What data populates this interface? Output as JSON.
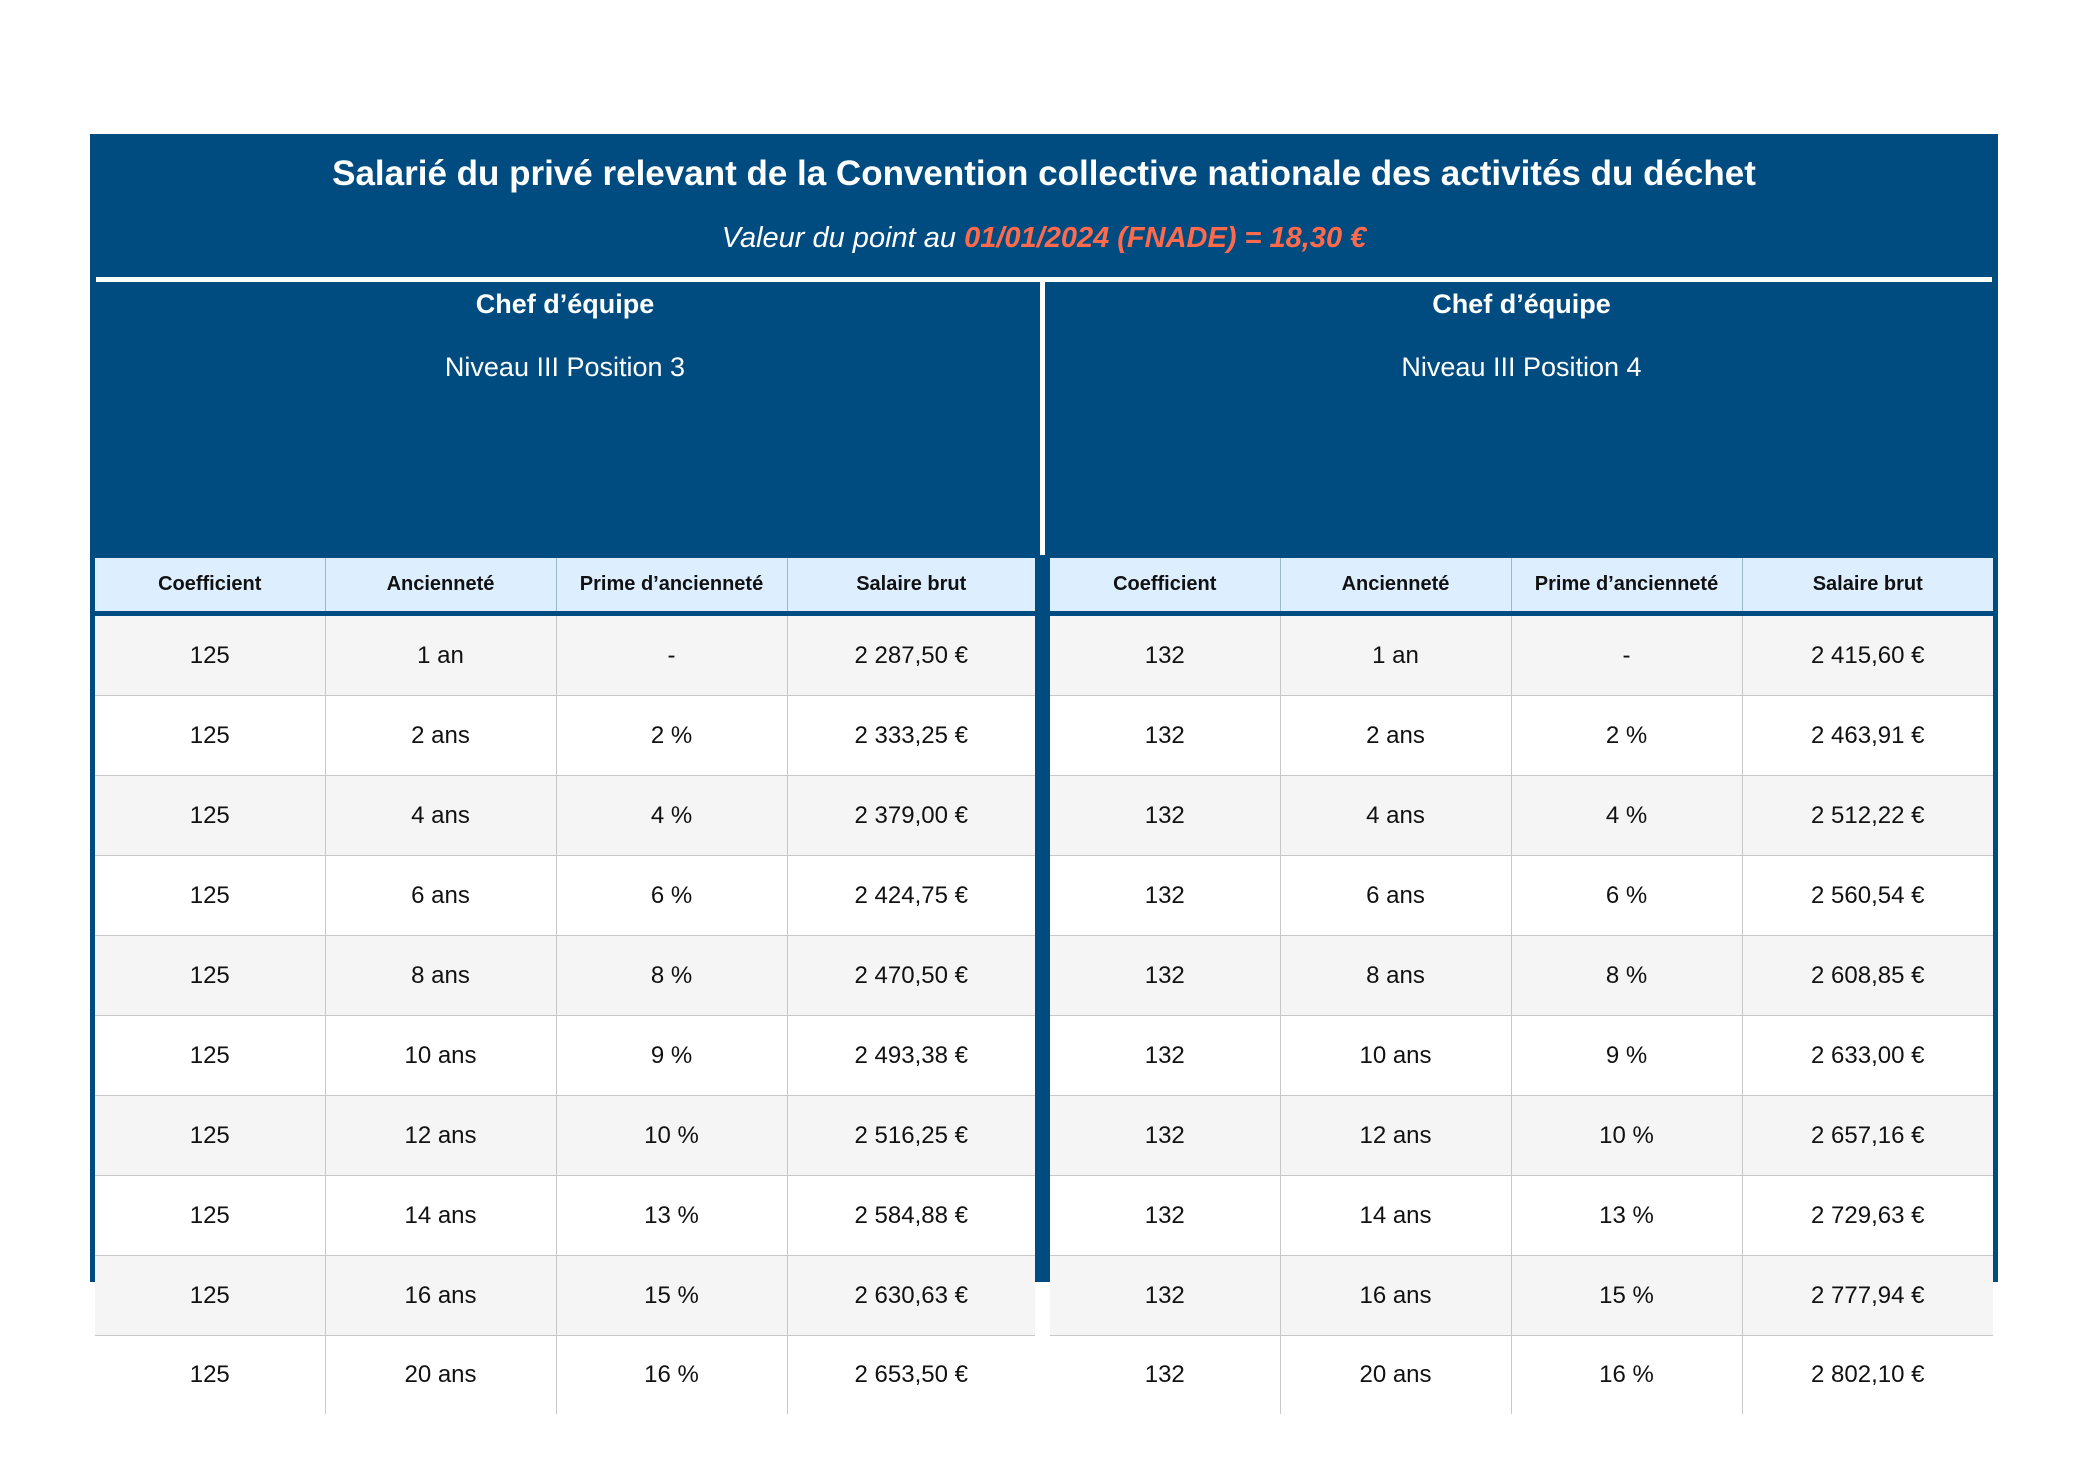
{
  "header": {
    "title": "Salarié du privé relevant de la Convention collective nationale des activités du déchet",
    "subtitle_prefix": "Valeur du point au",
    "subtitle_highlight": "01/01/2024 (FNADE) = 18,30 €"
  },
  "columns": [
    "Coefficient",
    "Ancienneté",
    "Prime d’ancienneté",
    "Salaire brut"
  ],
  "tables": [
    {
      "title": "Chef d’équipe",
      "subtitle": "Niveau III Position 3",
      "rows": [
        [
          "125",
          "1 an",
          "-",
          "2 287,50 €"
        ],
        [
          "125",
          "2 ans",
          "2 %",
          "2 333,25 €"
        ],
        [
          "125",
          "4 ans",
          "4 %",
          "2 379,00 €"
        ],
        [
          "125",
          "6 ans",
          "6 %",
          "2 424,75 €"
        ],
        [
          "125",
          "8 ans",
          "8 %",
          "2 470,50 €"
        ],
        [
          "125",
          "10 ans",
          "9 %",
          "2 493,38 €"
        ],
        [
          "125",
          "12 ans",
          "10 %",
          "2 516,25 €"
        ],
        [
          "125",
          "14 ans",
          "13 %",
          "2 584,88 €"
        ],
        [
          "125",
          "16 ans",
          "15 %",
          "2 630,63 €"
        ],
        [
          "125",
          "20 ans",
          "16 %",
          "2 653,50 €"
        ]
      ]
    },
    {
      "title": "Chef d’équipe",
      "subtitle": "Niveau III Position 4",
      "rows": [
        [
          "132",
          "1 an",
          "-",
          "2 415,60 €"
        ],
        [
          "132",
          "2 ans",
          "2 %",
          "2 463,91 €"
        ],
        [
          "132",
          "4 ans",
          "4 %",
          "2 512,22 €"
        ],
        [
          "132",
          "6 ans",
          "6 %",
          "2 560,54 €"
        ],
        [
          "132",
          "8 ans",
          "8 %",
          "2 608,85 €"
        ],
        [
          "132",
          "10 ans",
          "9 %",
          "2 633,00 €"
        ],
        [
          "132",
          "12 ans",
          "10 %",
          "2 657,16 €"
        ],
        [
          "132",
          "14 ans",
          "13 %",
          "2 729,63 €"
        ],
        [
          "132",
          "16 ans",
          "15 %",
          "2 777,94 €"
        ],
        [
          "132",
          "20 ans",
          "16 %",
          "2 802,10 €"
        ]
      ]
    }
  ],
  "colors": {
    "frame": "#004c80",
    "highlight": "#ff6a4d",
    "header_row": "#ddeeff",
    "stripe": "#f5f5f5"
  }
}
